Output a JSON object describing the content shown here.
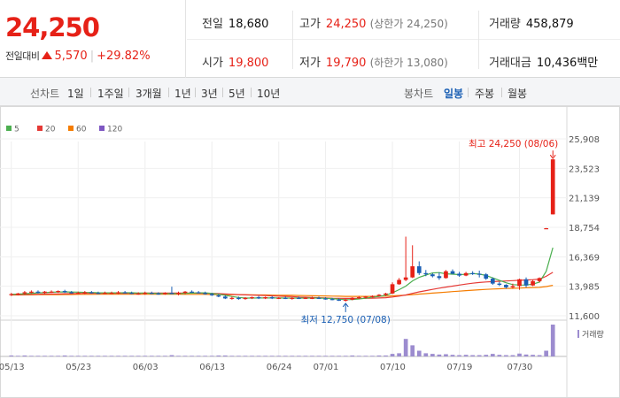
{
  "quote": {
    "price": "24,250",
    "change_label": "전일대비",
    "change_amount": "5,570",
    "change_pct": "+29.82%",
    "prev_close_label": "전일",
    "prev_close": "18,680",
    "open_label": "시가",
    "open": "19,800",
    "high_label": "고가",
    "high": "24,250",
    "upper_limit": "(상한가 24,250)",
    "low_label": "저가",
    "low": "19,790",
    "lower_limit": "(하한가 13,080)",
    "volume_label": "거래량",
    "volume": "458,879",
    "amount_label": "거래대금",
    "amount": "10,436",
    "amount_unit": "백만"
  },
  "toolbar": {
    "line_label": "선차트",
    "periods": [
      "1일",
      "1주일",
      "3개월",
      "1년",
      "3년",
      "5년",
      "10년"
    ],
    "candle_label": "봉차트",
    "candle_periods": [
      "일봉",
      "주봉",
      "월봉"
    ],
    "active_candle": "일봉"
  },
  "colors": {
    "up": "#e62117",
    "down": "#1a5fb4",
    "ma5": "#4caf50",
    "ma20": "#e53935",
    "ma60": "#f57c00",
    "ma120": "#7e57c2",
    "volume": "#9c8ccf"
  },
  "chart_data": {
    "type": "candlestick",
    "legend": [
      {
        "name": "5",
        "color": "#4caf50"
      },
      {
        "name": "20",
        "color": "#e53935"
      },
      {
        "name": "60",
        "color": "#f57c00"
      },
      {
        "name": "120",
        "color": "#7e57c2"
      }
    ],
    "y_ticks": [
      "25,908",
      "23,523",
      "21,139",
      "18,754",
      "16,369",
      "13,985",
      "11,600"
    ],
    "y_tick_values": [
      25908,
      23523,
      21139,
      18754,
      16369,
      13985,
      11600
    ],
    "ylim": [
      11600,
      25908
    ],
    "x_tick_labels": [
      "05/13",
      "05/23",
      "06/03",
      "06/13",
      "06/24",
      "07/01",
      "07/10",
      "07/19",
      "07/30"
    ],
    "x_tick_index": [
      0,
      10,
      20,
      30,
      40,
      47,
      57,
      67,
      76
    ],
    "high_annotation": "최고 24,250 (08/06)",
    "low_annotation": "최저 12,750 (07/08)",
    "volume_legend": "거래량",
    "candles": [
      {
        "o": 13300,
        "h": 13450,
        "l": 13200,
        "c": 13350
      },
      {
        "o": 13350,
        "h": 13450,
        "l": 13250,
        "c": 13400
      },
      {
        "o": 13400,
        "h": 13600,
        "l": 13300,
        "c": 13500
      },
      {
        "o": 13500,
        "h": 13650,
        "l": 13400,
        "c": 13550
      },
      {
        "o": 13550,
        "h": 13650,
        "l": 13400,
        "c": 13450
      },
      {
        "o": 13450,
        "h": 13600,
        "l": 13350,
        "c": 13550
      },
      {
        "o": 13550,
        "h": 13650,
        "l": 13450,
        "c": 13550
      },
      {
        "o": 13550,
        "h": 13650,
        "l": 13450,
        "c": 13600
      },
      {
        "o": 13600,
        "h": 13700,
        "l": 13450,
        "c": 13500
      },
      {
        "o": 13500,
        "h": 13600,
        "l": 13400,
        "c": 13450
      },
      {
        "o": 13450,
        "h": 13550,
        "l": 13350,
        "c": 13450
      },
      {
        "o": 13450,
        "h": 13600,
        "l": 13350,
        "c": 13500
      },
      {
        "o": 13500,
        "h": 13600,
        "l": 13400,
        "c": 13450
      },
      {
        "o": 13450,
        "h": 13550,
        "l": 13350,
        "c": 13400
      },
      {
        "o": 13400,
        "h": 13550,
        "l": 13350,
        "c": 13450
      },
      {
        "o": 13450,
        "h": 13550,
        "l": 13350,
        "c": 13450
      },
      {
        "o": 13450,
        "h": 13600,
        "l": 13350,
        "c": 13500
      },
      {
        "o": 13500,
        "h": 13600,
        "l": 13400,
        "c": 13450
      },
      {
        "o": 13450,
        "h": 13550,
        "l": 13350,
        "c": 13400
      },
      {
        "o": 13400,
        "h": 13500,
        "l": 13300,
        "c": 13400
      },
      {
        "o": 13400,
        "h": 13550,
        "l": 13300,
        "c": 13450
      },
      {
        "o": 13450,
        "h": 13550,
        "l": 13350,
        "c": 13400
      },
      {
        "o": 13400,
        "h": 13500,
        "l": 13300,
        "c": 13350
      },
      {
        "o": 13350,
        "h": 13500,
        "l": 13300,
        "c": 13450
      },
      {
        "o": 13450,
        "h": 13950,
        "l": 13350,
        "c": 13350
      },
      {
        "o": 13350,
        "h": 13550,
        "l": 13250,
        "c": 13450
      },
      {
        "o": 13450,
        "h": 13600,
        "l": 13350,
        "c": 13550
      },
      {
        "o": 13550,
        "h": 13650,
        "l": 13450,
        "c": 13500
      },
      {
        "o": 13500,
        "h": 13600,
        "l": 13400,
        "c": 13450
      },
      {
        "o": 13450,
        "h": 13550,
        "l": 13300,
        "c": 13350
      },
      {
        "o": 13350,
        "h": 13450,
        "l": 13200,
        "c": 13250
      },
      {
        "o": 13250,
        "h": 13350,
        "l": 13100,
        "c": 13150
      },
      {
        "o": 13150,
        "h": 13250,
        "l": 12950,
        "c": 13000
      },
      {
        "o": 13000,
        "h": 13150,
        "l": 12900,
        "c": 13050
      },
      {
        "o": 13050,
        "h": 13150,
        "l": 12900,
        "c": 12950
      },
      {
        "o": 12950,
        "h": 13100,
        "l": 12900,
        "c": 13050
      },
      {
        "o": 13050,
        "h": 13150,
        "l": 12950,
        "c": 13100
      },
      {
        "o": 13100,
        "h": 13200,
        "l": 12950,
        "c": 13000
      },
      {
        "o": 13000,
        "h": 13150,
        "l": 12950,
        "c": 13100
      },
      {
        "o": 13100,
        "h": 13200,
        "l": 12950,
        "c": 13000
      },
      {
        "o": 13000,
        "h": 13100,
        "l": 12950,
        "c": 13050
      },
      {
        "o": 13050,
        "h": 13150,
        "l": 12950,
        "c": 13000
      },
      {
        "o": 13000,
        "h": 13100,
        "l": 12900,
        "c": 13050
      },
      {
        "o": 13050,
        "h": 13150,
        "l": 12950,
        "c": 13000
      },
      {
        "o": 13000,
        "h": 13100,
        "l": 12950,
        "c": 13050
      },
      {
        "o": 13050,
        "h": 13150,
        "l": 12950,
        "c": 13050
      },
      {
        "o": 13050,
        "h": 13150,
        "l": 12950,
        "c": 13000
      },
      {
        "o": 13000,
        "h": 13100,
        "l": 12900,
        "c": 12950
      },
      {
        "o": 12950,
        "h": 13050,
        "l": 12850,
        "c": 12900
      },
      {
        "o": 12900,
        "h": 13000,
        "l": 12800,
        "c": 12850
      },
      {
        "o": 12850,
        "h": 12950,
        "l": 12750,
        "c": 12900
      },
      {
        "o": 12900,
        "h": 13100,
        "l": 12850,
        "c": 13050
      },
      {
        "o": 13050,
        "h": 13200,
        "l": 12950,
        "c": 13100
      },
      {
        "o": 13100,
        "h": 13200,
        "l": 13000,
        "c": 13150
      },
      {
        "o": 13150,
        "h": 13250,
        "l": 13050,
        "c": 13200
      },
      {
        "o": 13200,
        "h": 13350,
        "l": 13150,
        "c": 13300
      },
      {
        "o": 13300,
        "h": 13450,
        "l": 13200,
        "c": 13400
      },
      {
        "o": 13400,
        "h": 14300,
        "l": 13350,
        "c": 14150
      },
      {
        "o": 14150,
        "h": 14650,
        "l": 14100,
        "c": 14500
      },
      {
        "o": 14500,
        "h": 18000,
        "l": 14400,
        "c": 14700
      },
      {
        "o": 14700,
        "h": 17300,
        "l": 14650,
        "c": 15600
      },
      {
        "o": 15600,
        "h": 16000,
        "l": 14900,
        "c": 15050
      },
      {
        "o": 15050,
        "h": 15300,
        "l": 14800,
        "c": 14950
      },
      {
        "o": 14950,
        "h": 15050,
        "l": 14700,
        "c": 14800
      },
      {
        "o": 14800,
        "h": 15100,
        "l": 14500,
        "c": 14650
      },
      {
        "o": 14650,
        "h": 15300,
        "l": 14600,
        "c": 15200
      },
      {
        "o": 15200,
        "h": 15350,
        "l": 14950,
        "c": 15000
      },
      {
        "o": 15000,
        "h": 15150,
        "l": 14750,
        "c": 14850
      },
      {
        "o": 14850,
        "h": 15150,
        "l": 14800,
        "c": 15050
      },
      {
        "o": 15050,
        "h": 15200,
        "l": 14900,
        "c": 15000
      },
      {
        "o": 15000,
        "h": 15250,
        "l": 14700,
        "c": 14950
      },
      {
        "o": 14950,
        "h": 15050,
        "l": 14500,
        "c": 14600
      },
      {
        "o": 14600,
        "h": 14700,
        "l": 14100,
        "c": 14200
      },
      {
        "o": 14200,
        "h": 14350,
        "l": 14000,
        "c": 14100
      },
      {
        "o": 14100,
        "h": 14150,
        "l": 13800,
        "c": 13900
      },
      {
        "o": 13900,
        "h": 14200,
        "l": 13800,
        "c": 14000
      },
      {
        "o": 14000,
        "h": 14600,
        "l": 13700,
        "c": 14550
      },
      {
        "o": 14550,
        "h": 14700,
        "l": 13900,
        "c": 14050
      },
      {
        "o": 14050,
        "h": 14500,
        "l": 14000,
        "c": 14400
      },
      {
        "o": 14400,
        "h": 14700,
        "l": 14300,
        "c": 14650
      },
      {
        "o": 18680,
        "h": 18700,
        "l": 18660,
        "c": 18680
      },
      {
        "o": 19800,
        "h": 24250,
        "l": 19790,
        "c": 24250
      }
    ],
    "ma5": [
      13330,
      13350,
      13380,
      13420,
      13450,
      13470,
      13500,
      13520,
      13530,
      13520,
      13510,
      13490,
      13480,
      13460,
      13450,
      13450,
      13450,
      13460,
      13460,
      13440,
      13430,
      13420,
      13400,
      13390,
      13390,
      13390,
      13410,
      13430,
      13450,
      13450,
      13410,
      13340,
      13250,
      13160,
      13080,
      13030,
      13030,
      13040,
      13040,
      13040,
      13040,
      13030,
      13030,
      13030,
      13030,
      13030,
      13030,
      13010,
      12990,
      12940,
      12900,
      12910,
      12960,
      13020,
      13100,
      13170,
      13250,
      13450,
      13710,
      14000,
      14420,
      14710,
      14890,
      15060,
      15090,
      14990,
      14960,
      14930,
      14950,
      15010,
      14970,
      14860,
      14660,
      14470,
      14270,
      14120,
      14090,
      14080,
      14160,
      14320,
      15200,
      17100
    ],
    "ma20": [
      13300,
      13310,
      13320,
      13330,
      13340,
      13350,
      13360,
      13370,
      13380,
      13390,
      13400,
      13410,
      13410,
      13410,
      13410,
      13410,
      13420,
      13420,
      13420,
      13420,
      13430,
      13430,
      13430,
      13430,
      13430,
      13430,
      13430,
      13430,
      13430,
      13420,
      13410,
      13390,
      13360,
      13340,
      13310,
      13290,
      13270,
      13250,
      13230,
      13210,
      13190,
      13170,
      13150,
      13120,
      13100,
      13080,
      13060,
      13040,
      13020,
      13010,
      13000,
      13000,
      13000,
      13010,
      13020,
      13040,
      13060,
      13120,
      13190,
      13280,
      13410,
      13530,
      13630,
      13730,
      13830,
      13920,
      14000,
      14080,
      14160,
      14230,
      14290,
      14330,
      14360,
      14390,
      14410,
      14440,
      14470,
      14490,
      14520,
      14560,
      14790,
      15110
    ],
    "ma60": [
      13280,
      13280,
      13290,
      13290,
      13300,
      13300,
      13310,
      13310,
      13320,
      13320,
      13330,
      13330,
      13330,
      13340,
      13340,
      13340,
      13340,
      13340,
      13340,
      13340,
      13340,
      13340,
      13340,
      13340,
      13340,
      13340,
      13330,
      13330,
      13330,
      13330,
      13320,
      13320,
      13310,
      13310,
      13300,
      13300,
      13290,
      13280,
      13280,
      13270,
      13260,
      13250,
      13250,
      13240,
      13230,
      13220,
      13210,
      13200,
      13190,
      13180,
      13170,
      13170,
      13170,
      13170,
      13170,
      13180,
      13190,
      13210,
      13240,
      13270,
      13310,
      13350,
      13390,
      13430,
      13470,
      13510,
      13550,
      13590,
      13630,
      13670,
      13700,
      13730,
      13760,
      13780,
      13800,
      13820,
      13840,
      13860,
      13880,
      13900,
      13960,
      14060
    ],
    "volume": [
      3,
      2,
      3,
      2,
      2,
      2,
      2,
      2,
      3,
      2,
      2,
      2,
      2,
      2,
      2,
      2,
      2,
      2,
      2,
      2,
      2,
      2,
      2,
      2,
      4,
      2,
      2,
      2,
      2,
      2,
      2,
      3,
      3,
      2,
      2,
      2,
      2,
      2,
      2,
      2,
      2,
      2,
      2,
      2,
      2,
      2,
      2,
      2,
      2,
      2,
      2,
      3,
      2,
      2,
      2,
      3,
      3,
      8,
      10,
      55,
      35,
      18,
      10,
      8,
      6,
      7,
      5,
      4,
      5,
      4,
      4,
      5,
      8,
      5,
      4,
      4,
      9,
      6,
      5,
      4,
      18,
      100
    ]
  }
}
